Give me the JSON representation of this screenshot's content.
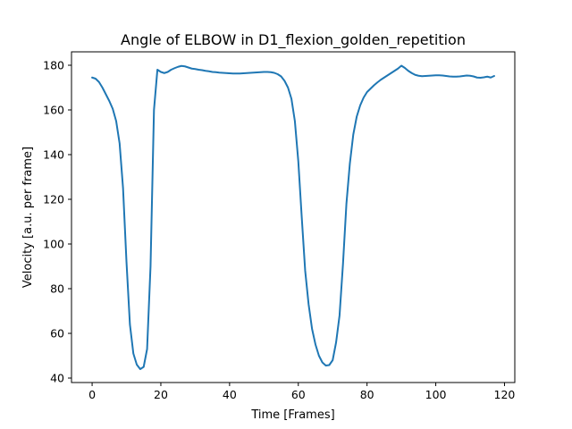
{
  "chart_data": {
    "type": "line",
    "title": "Angle of ELBOW in D1_flexion_golden_repetition",
    "xlabel": "Time [Frames]",
    "ylabel": "Velocity [a.u. per frame]",
    "xlim": [
      -6,
      123
    ],
    "ylim": [
      38,
      186
    ],
    "xticks": [
      0,
      20,
      40,
      60,
      80,
      100,
      120
    ],
    "yticks": [
      40,
      60,
      80,
      100,
      120,
      140,
      160,
      180
    ],
    "grid": false,
    "legend": "none",
    "series": [
      {
        "color": "#1f77b4",
        "x": [
          0,
          1,
          2,
          3,
          4,
          5,
          6,
          7,
          8,
          9,
          10,
          11,
          12,
          13,
          14,
          15,
          16,
          17,
          18,
          19,
          20,
          21,
          22,
          23,
          24,
          25,
          26,
          27,
          28,
          29,
          30,
          31,
          32,
          33,
          34,
          35,
          36,
          37,
          38,
          39,
          40,
          41,
          42,
          43,
          44,
          45,
          46,
          47,
          48,
          49,
          50,
          51,
          52,
          53,
          54,
          55,
          56,
          57,
          58,
          59,
          60,
          61,
          62,
          63,
          64,
          65,
          66,
          67,
          68,
          69,
          70,
          71,
          72,
          73,
          74,
          75,
          76,
          77,
          78,
          79,
          80,
          81,
          82,
          83,
          84,
          85,
          86,
          87,
          88,
          89,
          90,
          91,
          92,
          93,
          94,
          95,
          96,
          97,
          98,
          99,
          100,
          101,
          102,
          103,
          104,
          105,
          106,
          107,
          108,
          109,
          110,
          111,
          112,
          113,
          114,
          115,
          116,
          117
        ],
        "y": [
          174.5,
          174,
          172.5,
          170,
          167,
          164,
          160.5,
          155,
          145,
          125,
          92,
          64,
          51,
          46,
          44,
          45,
          53,
          90,
          160,
          178,
          177,
          176.5,
          177,
          178,
          178.7,
          179.3,
          179.7,
          179.5,
          179,
          178.5,
          178.3,
          178,
          177.8,
          177.5,
          177.3,
          177,
          176.9,
          176.7,
          176.6,
          176.5,
          176.4,
          176.3,
          176.3,
          176.3,
          176.4,
          176.5,
          176.6,
          176.7,
          176.8,
          176.9,
          177,
          177,
          176.9,
          176.6,
          176,
          175,
          173,
          170,
          165,
          155,
          137,
          112,
          88,
          73,
          62,
          55,
          50,
          47,
          45.6,
          45.8,
          48,
          56,
          68,
          91,
          118,
          136,
          149,
          157,
          162,
          165.5,
          168,
          169.5,
          171,
          172.3,
          173.5,
          174.5,
          175.5,
          176.5,
          177.5,
          178.5,
          179.8,
          178.8,
          177.5,
          176.5,
          175.7,
          175.3,
          175.1,
          175.2,
          175.3,
          175.4,
          175.5,
          175.5,
          175.4,
          175.2,
          175,
          174.9,
          174.9,
          175,
          175.2,
          175.4,
          175.3,
          175,
          174.5,
          174.4,
          174.6,
          174.9,
          174.5,
          175.2
        ]
      }
    ]
  }
}
